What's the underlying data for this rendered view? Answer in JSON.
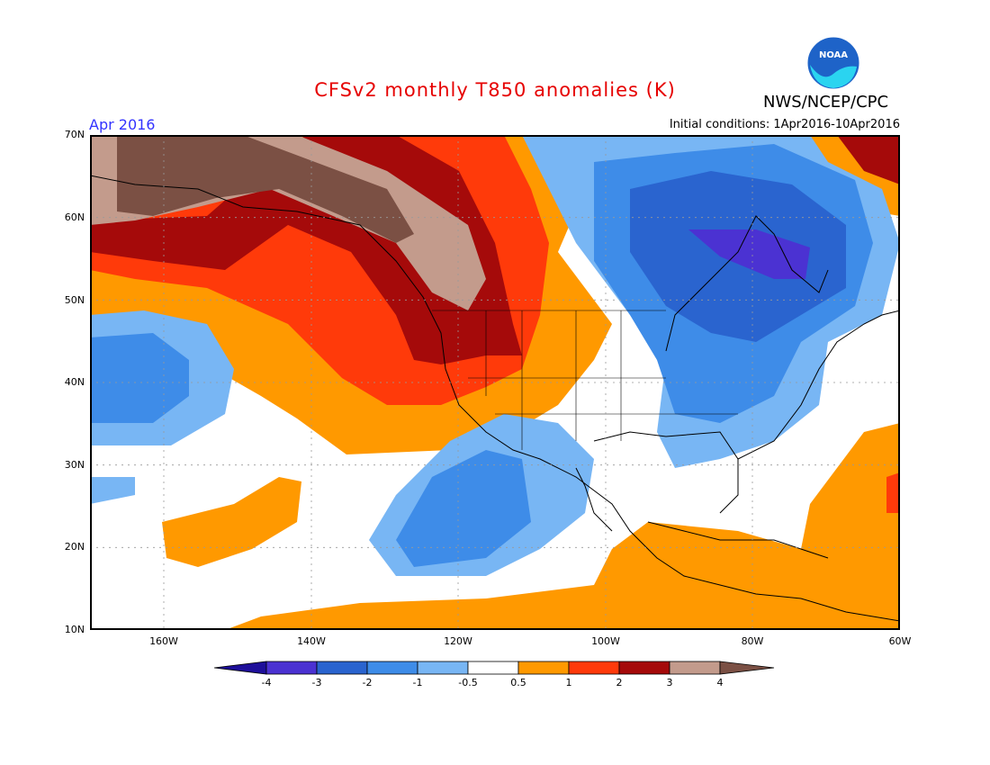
{
  "title": "CFSv2 monthly T850 anomalies (K)",
  "agency": "NWS/NCEP/CPC",
  "logo_text": "NOAA",
  "month_label": "Apr 2016",
  "initial_conditions": "Initial conditions: 1Apr2016-10Apr2016",
  "lat_labels": [
    "70N",
    "60N",
    "50N",
    "40N",
    "30N",
    "20N",
    "10N"
  ],
  "lon_labels": [
    "160W",
    "140W",
    "120W",
    "100W",
    "80W",
    "60W"
  ],
  "colorbar": {
    "labels": [
      "-4",
      "-3",
      "-2",
      "-1",
      "-0.5",
      "0.5",
      "1",
      "2",
      "3",
      "4"
    ],
    "colors": [
      "#1e0f9a",
      "#4b32d2",
      "#2a64cf",
      "#3e8ce8",
      "#78b6f4",
      "#ffffff",
      "#ff9900",
      "#ff3a0a",
      "#a50a0a",
      "#c39b8c",
      "#7b5044"
    ]
  }
}
